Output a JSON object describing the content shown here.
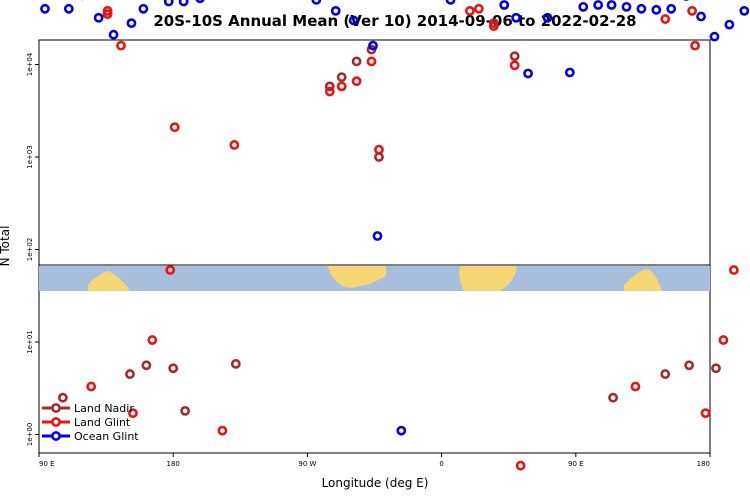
{
  "chart_data": {
    "type": "scatter",
    "title": "20S-10S Annual Mean (Ver 10)   2014-09-06 to 2022-02-28",
    "xlabel": "Longitude (deg E)",
    "ylabel": "N Total",
    "y_scale": "log",
    "ylim": [
      0.7,
      170000
    ],
    "x_ticks": [
      {
        "label": "90 E",
        "value": 90
      },
      {
        "label": "180",
        "value": 180
      },
      {
        "label": "90 W",
        "value": 270
      },
      {
        "label": "0",
        "value": 360
      },
      {
        "label": "90 E",
        "value": 450
      },
      {
        "label": "180",
        "value": 540
      }
    ],
    "y_ticks": [
      {
        "label": "1e+00",
        "value": 1
      },
      {
        "label": "1e+01",
        "value": 10
      },
      {
        "label": "1e+02",
        "value": 100
      },
      {
        "label": "1e+03",
        "value": 1000
      },
      {
        "label": "1e+04",
        "value": 10000
      },
      {
        "label": "1e+05",
        "value": 100000
      }
    ],
    "legend_position": "bottom-left",
    "series": [
      {
        "name": "Land Nadir",
        "color": "#a52a2a",
        "points": [
          [
            106,
            2.5
          ],
          [
            151,
            4.5
          ],
          [
            162,
            5.6
          ],
          [
            180,
            5.2
          ],
          [
            188,
            1.8
          ],
          [
            222,
            5.8
          ],
          [
            285,
            5800
          ],
          [
            293,
            7300
          ],
          [
            303,
            10800
          ],
          [
            313,
            14500
          ],
          [
            318,
            1000
          ],
          [
            395,
            28000
          ],
          [
            409,
            12300
          ],
          [
            475,
            2.5
          ],
          [
            510,
            4.5
          ],
          [
            526,
            5.6
          ],
          [
            544,
            5.2
          ]
        ]
      },
      {
        "name Land Glint": null,
        "name": "Land Glint",
        "color": "#ee1111",
        "points": [
          [
            125,
            3.3
          ],
          [
            136,
            35000
          ],
          [
            136,
            38000
          ],
          [
            145,
            16000
          ],
          [
            153,
            1.7
          ],
          [
            166,
            10.5
          ],
          [
            178,
            60
          ],
          [
            181,
            2100
          ],
          [
            213,
            1.1
          ],
          [
            221,
            1350
          ],
          [
            285,
            5100
          ],
          [
            293,
            5800
          ],
          [
            303,
            6600
          ],
          [
            313,
            10800
          ],
          [
            318,
            1200
          ],
          [
            379,
            38000
          ],
          [
            385,
            40000
          ],
          [
            395,
            26000
          ],
          [
            409,
            9800
          ],
          [
            413,
            0.46
          ],
          [
            490,
            3.3
          ],
          [
            510,
            31000
          ],
          [
            528,
            38000
          ],
          [
            530,
            16000
          ],
          [
            537,
            1.7
          ],
          [
            549,
            10.5
          ],
          [
            556,
            60
          ]
        ]
      },
      {
        "name": "Ocean Glint",
        "color": "#0000ee",
        "points": [
          [
            94,
            40000
          ],
          [
            110,
            40000
          ],
          [
            119,
            56000
          ],
          [
            130,
            32000
          ],
          [
            140,
            21000
          ],
          [
            152,
            28000
          ],
          [
            160,
            40000
          ],
          [
            177,
            48000
          ],
          [
            187,
            48000
          ],
          [
            198,
            52000
          ],
          [
            208,
            60000
          ],
          [
            220,
            66000
          ],
          [
            230,
            76000
          ],
          [
            240,
            92000
          ],
          [
            251,
            98000
          ],
          [
            261,
            88000
          ],
          [
            276,
            50000
          ],
          [
            289,
            38000
          ],
          [
            301,
            30000
          ],
          [
            314,
            16000
          ],
          [
            317,
            140
          ],
          [
            333,
            1.1
          ],
          [
            366,
            50000
          ],
          [
            377,
            89000
          ],
          [
            392,
            82000
          ],
          [
            402,
            44000
          ],
          [
            410,
            32000
          ],
          [
            418,
            8000
          ],
          [
            431,
            32000
          ],
          [
            446,
            8200
          ],
          [
            455,
            42000
          ],
          [
            465,
            44000
          ],
          [
            474,
            44000
          ],
          [
            484,
            42000
          ],
          [
            494,
            40000
          ],
          [
            504,
            39000
          ],
          [
            514,
            40000
          ],
          [
            524,
            55000
          ],
          [
            534,
            33000
          ],
          [
            543,
            20000
          ],
          [
            553,
            27000
          ],
          [
            563,
            38000
          ],
          [
            573,
            47000
          ],
          [
            583,
            49000
          ],
          [
            593,
            49000
          ],
          [
            601,
            49000
          ],
          [
            612,
            40000
          ],
          [
            624,
            33000
          ]
        ]
      }
    ]
  }
}
